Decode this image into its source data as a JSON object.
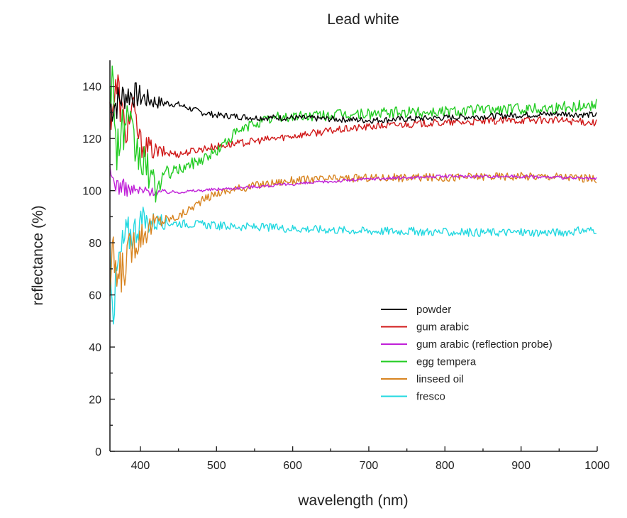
{
  "chart_data": {
    "type": "line",
    "title": "Lead white",
    "xlabel": "wavelength (nm)",
    "ylabel": "reflectance (%)",
    "xlim": [
      360,
      1000
    ],
    "ylim": [
      0,
      150
    ],
    "xticks": [
      400,
      500,
      600,
      700,
      800,
      900,
      1000
    ],
    "yticks": [
      0,
      20,
      40,
      60,
      80,
      100,
      120,
      140
    ],
    "grid": false,
    "legend_position": "lower-right",
    "series": [
      {
        "name": "powder",
        "color": "#000000",
        "noise": 1.2,
        "x": [
          360,
          370,
          380,
          390,
          400,
          420,
          450,
          480,
          500,
          550,
          600,
          650,
          700,
          750,
          800,
          850,
          900,
          950,
          1000
        ],
        "y": [
          132,
          134,
          137,
          137,
          136,
          134,
          133,
          130,
          129,
          128,
          128,
          127.5,
          127,
          127.5,
          128,
          128.5,
          129,
          129.5,
          129
        ]
      },
      {
        "name": "gum arabic",
        "color": "#d01818",
        "noise": 1.4,
        "x": [
          360,
          370,
          380,
          390,
          400,
          420,
          450,
          480,
          500,
          550,
          600,
          650,
          700,
          750,
          800,
          850,
          900,
          950,
          1000
        ],
        "y": [
          130,
          140,
          122,
          132,
          118,
          115,
          114,
          116,
          117,
          119,
          121,
          123,
          124.5,
          125.5,
          126,
          126.5,
          127,
          127,
          126
        ]
      },
      {
        "name": "gum arabic (reflection probe)",
        "color": "#c020d8",
        "noise": 0.6,
        "x": [
          360,
          370,
          380,
          390,
          400,
          420,
          450,
          500,
          550,
          600,
          650,
          700,
          750,
          800,
          850,
          900,
          950,
          1000
        ],
        "y": [
          106,
          102,
          101,
          100,
          100,
          99.5,
          99.5,
          100.5,
          101.5,
          102.5,
          103.5,
          104.5,
          105,
          105.5,
          105.5,
          105.5,
          105,
          104.5
        ]
      },
      {
        "name": "egg tempera",
        "color": "#22cc22",
        "noise": 2.2,
        "x": [
          360,
          370,
          380,
          390,
          400,
          410,
          420,
          430,
          450,
          480,
          500,
          520,
          550,
          580,
          600,
          650,
          700,
          750,
          800,
          850,
          900,
          950,
          1000
        ],
        "y": [
          150,
          118,
          125,
          118,
          112,
          108,
          100,
          106,
          108,
          112,
          115,
          121,
          126,
          128,
          128.5,
          129,
          129.5,
          130,
          130.5,
          131,
          131.5,
          132,
          133
        ]
      },
      {
        "name": "linseed oil",
        "color": "#d88420",
        "noise": 1.6,
        "x": [
          360,
          365,
          370,
          380,
          390,
          400,
          420,
          450,
          480,
          500,
          550,
          600,
          650,
          700,
          750,
          800,
          850,
          900,
          950,
          1000
        ],
        "y": [
          62,
          75,
          65,
          72,
          80,
          83,
          88,
          90,
          96,
          99,
          102,
          104,
          104.5,
          105,
          105,
          105,
          105.5,
          105.5,
          105.5,
          104.5
        ]
      },
      {
        "name": "fresco",
        "color": "#22d8e0",
        "noise": 1.6,
        "x": [
          360,
          365,
          370,
          380,
          390,
          400,
          420,
          450,
          480,
          500,
          550,
          600,
          650,
          700,
          750,
          800,
          850,
          900,
          950,
          1000
        ],
        "y": [
          78,
          55,
          70,
          82,
          84,
          88,
          88,
          87.5,
          87,
          86.5,
          86,
          85.5,
          85,
          84.5,
          84.5,
          84,
          84,
          84,
          84,
          85
        ]
      }
    ]
  }
}
